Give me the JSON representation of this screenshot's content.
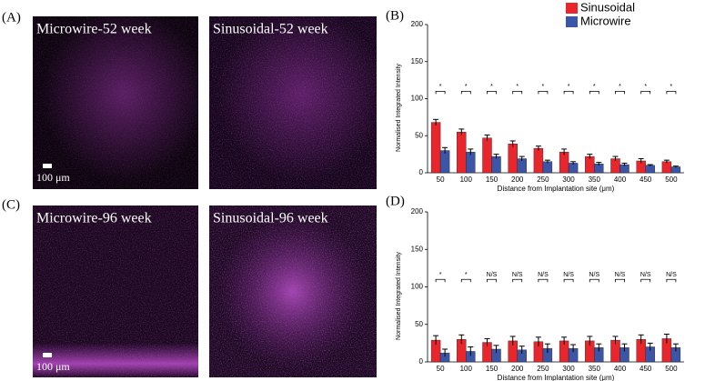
{
  "figure": {
    "panel_labels": [
      "(A)",
      "(B)",
      "(C)",
      "(D)"
    ],
    "images": [
      {
        "label": "Microwire-52 week",
        "scale": "100  μm"
      },
      {
        "label": "Sinusoidal-52 week"
      },
      {
        "label": "Microwire-96 week",
        "scale": "100  μm"
      },
      {
        "label": "Sinusoidal-96 week"
      }
    ]
  },
  "chart_data": [
    {
      "type": "bar",
      "ylabel": "Normalised Integrated Intensity",
      "xlabel": "Distance from Implantation site (μm)",
      "categories": [
        "50",
        "100",
        "150",
        "200",
        "250",
        "300",
        "350",
        "400",
        "450",
        "500"
      ],
      "series": [
        {
          "name": "Sinusoidal",
          "color": "#e8262b",
          "values": [
            68,
            55,
            47,
            39,
            33,
            28,
            22,
            19,
            16,
            15
          ],
          "errors": [
            4,
            4,
            4,
            4,
            3,
            4,
            3,
            3,
            3,
            2
          ]
        },
        {
          "name": "Microwire",
          "color": "#3b56a6",
          "values": [
            30,
            28,
            22,
            19,
            15,
            13,
            12,
            11,
            10,
            8
          ],
          "errors": [
            4,
            4,
            3,
            3,
            2,
            2,
            2,
            2,
            1,
            1
          ]
        }
      ],
      "annotations": [
        "*",
        "*",
        "*",
        "*",
        "*",
        "*",
        "*",
        "*",
        "*",
        "*"
      ],
      "ylim": [
        0,
        200
      ],
      "yticks": [
        0,
        50,
        100,
        150,
        200
      ]
    },
    {
      "type": "bar",
      "ylabel": "Normalised Integrated Intensity",
      "xlabel": "Distance from Implantation site (μm)",
      "categories": [
        "50",
        "100",
        "150",
        "200",
        "250",
        "300",
        "350",
        "400",
        "450",
        "500"
      ],
      "series": [
        {
          "name": "Sinusoidal",
          "color": "#e8262b",
          "values": [
            29,
            30,
            26,
            28,
            27,
            28,
            28,
            29,
            30,
            31
          ],
          "errors": [
            6,
            6,
            5,
            6,
            6,
            5,
            6,
            5,
            6,
            6
          ]
        },
        {
          "name": "Microwire",
          "color": "#3b56a6",
          "values": [
            12,
            14,
            17,
            16,
            18,
            18,
            19,
            19,
            20,
            19
          ],
          "errors": [
            5,
            6,
            5,
            5,
            6,
            5,
            5,
            5,
            5,
            5
          ]
        }
      ],
      "annotations": [
        "*",
        "*",
        "N/S",
        "N/S",
        "N/S",
        "N/S",
        "N/S",
        "N/S",
        "N/S",
        "N/S"
      ],
      "ylim": [
        0,
        200
      ],
      "yticks": [
        0,
        50,
        100,
        150,
        200
      ]
    }
  ]
}
